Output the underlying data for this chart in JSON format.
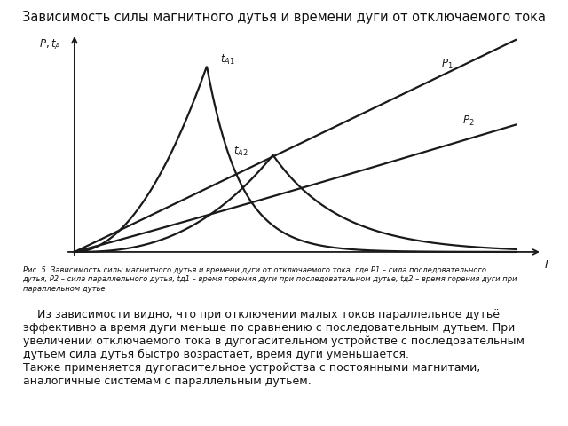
{
  "title": "Зависимость силы магнитного дутья и времени дуги от отключаемого тока",
  "title_fontsize": 10.5,
  "caption": "Рис. 5. Зависимость силы магнитного дутья и времени дуги от отключаемого тока, где P1 – сила последовательного\nдутья, P2 – сила параллельного дутья, tд1 – время горения дуги при последовательном дутье, tд2 – время горения дуги при\nпараллельном дутье",
  "body_text": "    Из зависимости видно, что при отключении малых токов параллельное дутьё\nэффективно а время дуги меньше по сравнению с последовательным дутьем. При\nувеличении отключаемого тока в дугогасительном устройстве с последовательным\nдутьем сила дутья быстро возрастает, время дуги уменьшается.\nТакже применяется дугогасительное устройства с постоянными магнитами,\nаналогичные системам с параллельным дутьем.",
  "background_color": "#ffffff",
  "line_color": "#1a1a1a",
  "text_color": "#111111",
  "curve_lw": 1.6,
  "axis_lw": 1.3,
  "caption_fontsize": 6.0,
  "body_fontsize": 9.0
}
